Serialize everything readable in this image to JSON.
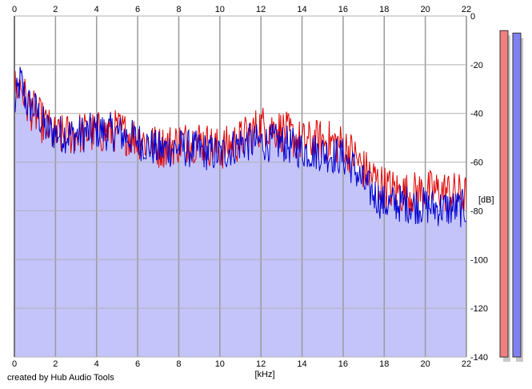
{
  "credit": "created by Hub Audio Tools",
  "chart_data": {
    "type": "line",
    "title": "",
    "xlabel": "[kHz]",
    "ylabel": "[dB]",
    "xlim": [
      0,
      22
    ],
    "ylim": [
      -140,
      0
    ],
    "x_ticks": [
      "0",
      "2",
      "4",
      "6",
      "8",
      "10",
      "12",
      "14",
      "16",
      "18",
      "20",
      "22"
    ],
    "y_ticks": [
      "0",
      "-20",
      "-40",
      "-60",
      "-80",
      "-100",
      "-120",
      "-140"
    ],
    "grid": true,
    "fill_color": "#c4c4fb",
    "series": [
      {
        "color": "#e00000",
        "x": [
          0,
          0.3,
          0.6,
          1,
          1.5,
          2,
          3,
          4,
          5,
          6,
          7,
          8,
          9,
          10,
          11,
          12,
          13,
          14,
          15,
          16,
          16.5,
          17,
          18,
          19,
          20,
          21,
          22
        ],
        "values": [
          -30,
          -28,
          -36,
          -40,
          -45,
          -50,
          -48,
          -48,
          -47,
          -50,
          -54,
          -52,
          -51,
          -55,
          -51,
          -45,
          -47,
          -52,
          -51,
          -53,
          -57,
          -63,
          -70,
          -73,
          -72,
          -72,
          -74
        ]
      },
      {
        "color": "#0000d0",
        "x": [
          0,
          0.3,
          0.6,
          1,
          1.5,
          2,
          3,
          4,
          5,
          6,
          7,
          8,
          9,
          10,
          11,
          12,
          13,
          14,
          15,
          16,
          16.5,
          17,
          18,
          19,
          20,
          21,
          22
        ],
        "values": [
          -38,
          -26,
          -36,
          -38,
          -46,
          -48,
          -49,
          -47,
          -48,
          -51,
          -55,
          -54,
          -55,
          -57,
          -52,
          -52,
          -52,
          -55,
          -56,
          -58,
          -62,
          -69,
          -77,
          -77,
          -78,
          -79,
          -79
        ]
      }
    ],
    "level_meters": [
      {
        "color": "#f08080",
        "level_db": -6
      },
      {
        "color": "#8080f0",
        "level_db": -7
      }
    ]
  }
}
